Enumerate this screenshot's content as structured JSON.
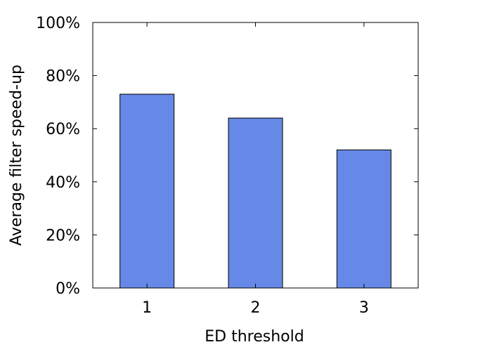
{
  "chart_data": {
    "type": "bar",
    "title": "",
    "xlabel": "ED threshold",
    "ylabel": "Average filter speed-up",
    "categories": [
      "1",
      "2",
      "3"
    ],
    "values": [
      73,
      64,
      52
    ],
    "value_unit": "%",
    "ylim": [
      0,
      100
    ],
    "yticks": [
      0,
      20,
      40,
      60,
      80,
      100
    ],
    "ytick_labels": [
      "0%",
      "20%",
      "40%",
      "60%",
      "80%",
      "100%"
    ],
    "grid": false,
    "legend": "none",
    "bar_color": "#6688e6",
    "bar_edge_color": "#000000"
  }
}
